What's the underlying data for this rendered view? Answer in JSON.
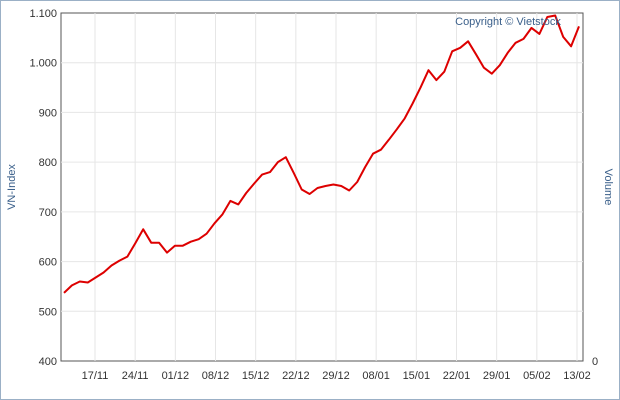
{
  "copyright": "Copyright © Vietstock",
  "chart_data": {
    "type": "line",
    "title": "",
    "ylabel": "VN-Index",
    "y2label": "Volume",
    "y2_ticks": [
      "0"
    ],
    "ylim": [
      400,
      1100
    ],
    "y_ticks": [
      400,
      500,
      600,
      700,
      800,
      900,
      1000,
      1100
    ],
    "y_tick_labels": [
      "400",
      "500",
      "600",
      "700",
      "800",
      "900",
      "1.000",
      "1.100"
    ],
    "x_tick_labels": [
      "17/11",
      "24/11",
      "01/12",
      "08/12",
      "15/12",
      "22/12",
      "29/12",
      "08/01",
      "15/01",
      "22/01",
      "29/01",
      "05/02",
      "13/02"
    ],
    "grid": true,
    "line_color": "#dd0000",
    "series": [
      {
        "values": [
          537,
          552,
          560,
          558,
          568,
          578,
          592,
          602,
          610,
          637,
          665,
          638,
          638,
          618,
          632,
          632,
          640,
          645,
          656,
          677,
          695,
          722,
          715,
          738,
          757,
          775,
          780,
          800,
          810,
          778,
          745,
          736,
          748,
          752,
          755,
          752,
          743,
          760,
          790,
          817,
          825,
          845,
          866,
          888,
          918,
          950,
          985,
          965,
          982,
          1023,
          1030,
          1043,
          1017,
          990,
          978,
          995,
          1020,
          1040,
          1048,
          1070,
          1058,
          1092,
          1095,
          1052,
          1033,
          1073
        ]
      }
    ]
  }
}
